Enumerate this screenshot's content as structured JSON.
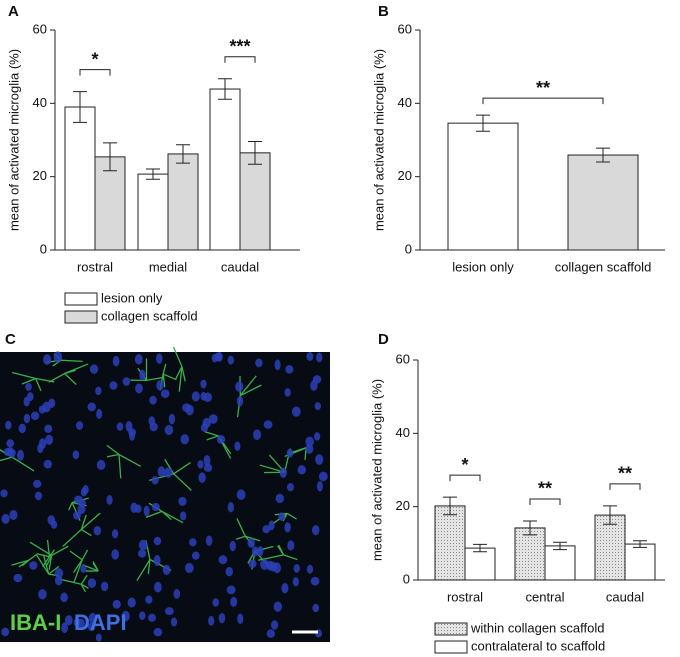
{
  "chart_data": [
    {
      "type": "bar",
      "panel": "A",
      "ylabel": "mean of activated microglia (%)",
      "categories": [
        "rostral",
        "medial",
        "caudal"
      ],
      "series": [
        {
          "name": "lesion only",
          "color": "#ffffff",
          "values": [
            39,
            20.7,
            43.9
          ],
          "errors": [
            4.2,
            1.4,
            2.8
          ]
        },
        {
          "name": "collagen scaffold",
          "color": "#d9d9d9",
          "values": [
            25.4,
            26.2,
            26.5
          ],
          "errors": [
            3.8,
            2.5,
            3.1
          ]
        }
      ],
      "significance": [
        "*",
        null,
        "***"
      ],
      "ylim": [
        0,
        60
      ],
      "yticks": [
        0,
        20,
        40,
        60
      ]
    },
    {
      "type": "bar",
      "panel": "B",
      "ylabel": "mean of activated microglia (%)",
      "categories": [
        "lesion only",
        "collagen scaffold"
      ],
      "values": [
        34.6,
        25.9
      ],
      "errors": [
        2.2,
        1.9
      ],
      "colors": [
        "#ffffff",
        "#d9d9d9"
      ],
      "significance": "**",
      "ylim": [
        0,
        60
      ],
      "yticks": [
        0,
        20,
        40,
        60
      ]
    },
    {
      "type": "bar",
      "panel": "D",
      "ylabel": "mean of activated microglia (%)",
      "categories": [
        "rostral",
        "central",
        "caudal"
      ],
      "series": [
        {
          "name": "within collagen scaffold",
          "color": "#d4d4d4",
          "values": [
            20.2,
            14.2,
            17.7
          ],
          "errors": [
            2.4,
            1.9,
            2.5
          ]
        },
        {
          "name": "contralateral to scaffold",
          "color": "#ffffff",
          "values": [
            8.7,
            9.3,
            9.8
          ],
          "errors": [
            1.0,
            1.0,
            0.9
          ]
        }
      ],
      "significance": [
        "*",
        "**",
        "**"
      ],
      "ylim": [
        0,
        60
      ],
      "yticks": [
        0,
        20,
        40,
        60
      ]
    }
  ],
  "image_panel": {
    "panel": "C",
    "stain_labels": [
      "IBA-I",
      "DAPI"
    ]
  }
}
